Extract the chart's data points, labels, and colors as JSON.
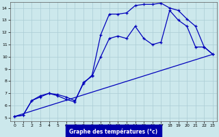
{
  "xlabel": "Graphe des températures (°c)",
  "bg_color": "#cce8ec",
  "grid_color": "#aaccd4",
  "line_color": "#0000bb",
  "xlim": [
    -0.5,
    23.5
  ],
  "ylim": [
    4.7,
    14.5
  ],
  "yticks": [
    5,
    6,
    7,
    8,
    9,
    10,
    11,
    12,
    13,
    14
  ],
  "xticks": [
    0,
    1,
    2,
    3,
    4,
    5,
    6,
    7,
    8,
    9,
    10,
    11,
    12,
    13,
    14,
    15,
    16,
    17,
    18,
    19,
    20,
    21,
    22,
    23
  ],
  "curve1_x": [
    0,
    1,
    2,
    3,
    4,
    5,
    6,
    7,
    8,
    9,
    10,
    11,
    12,
    13,
    14,
    15,
    16,
    17,
    18,
    19,
    20,
    21,
    22,
    23
  ],
  "curve1_y": [
    5.1,
    5.2,
    6.4,
    6.8,
    7.0,
    6.9,
    6.7,
    6.4,
    7.8,
    8.5,
    11.8,
    13.5,
    13.5,
    13.6,
    14.2,
    14.3,
    14.3,
    14.4,
    14.0,
    13.8,
    13.1,
    12.5,
    10.8,
    10.2
  ],
  "curve2_x": [
    0,
    1,
    2,
    3,
    4,
    5,
    6,
    7,
    8,
    9,
    10,
    11,
    12,
    13,
    14,
    15,
    16,
    17,
    18,
    19,
    20,
    21,
    22,
    23
  ],
  "curve2_y": [
    5.1,
    5.2,
    6.4,
    6.7,
    7.0,
    6.8,
    6.5,
    6.3,
    7.9,
    8.4,
    10.0,
    11.5,
    11.7,
    11.5,
    12.5,
    11.5,
    11.0,
    11.2,
    13.8,
    13.0,
    12.5,
    10.8,
    10.8,
    10.2
  ],
  "line3_x": [
    0,
    23
  ],
  "line3_y": [
    5.1,
    10.2
  ]
}
